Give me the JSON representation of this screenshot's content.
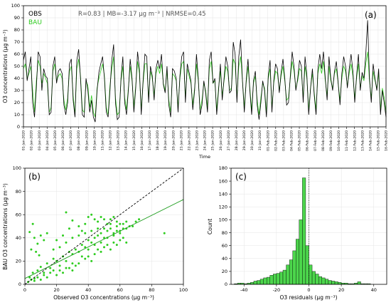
{
  "chart_data": [
    {
      "type": "line",
      "panel": "(a)",
      "ylabel": "O3 concentrations (μg m⁻³)",
      "xlabel": "Time",
      "ylim": [
        0,
        100
      ],
      "yticks": [
        0,
        10,
        20,
        30,
        40,
        50,
        60,
        70,
        80,
        90,
        100
      ],
      "grid": true,
      "legend": {
        "placement": "top-left",
        "entries": [
          "OBS",
          "BAU"
        ]
      },
      "stats": "R=0.83 | MB=-3.17 μg m⁻³ | NRMSE=0.45",
      "x_tick_labels": [
        "01-Jan-2020",
        "02-Jan-2020",
        "03-Jan-2020",
        "04-Jan-2020",
        "05-Jan-2020",
        "06-Jan-2020",
        "07-Jan-2020",
        "08-Jan-2020",
        "09-Jan-2020",
        "10-Jan-2020",
        "11-Jan-2020",
        "12-Jan-2020",
        "13-Jan-2020",
        "14-Jan-2020",
        "15-Jan-2020",
        "16-Jan-2020",
        "17-Jan-2020",
        "18-Jan-2020",
        "19-Jan-2020",
        "20-Jan-2020",
        "21-Jan-2020",
        "22-Jan-2020",
        "23-Jan-2020",
        "24-Jan-2020",
        "25-Jan-2020",
        "26-Jan-2020",
        "27-Jan-2020",
        "28-Jan-2020",
        "29-Jan-2020",
        "30-Jan-2020",
        "31-Jan-2020",
        "01-Feb-2020",
        "02-Feb-2020",
        "03-Feb-2020",
        "04-Feb-2020",
        "05-Feb-2020",
        "06-Feb-2020",
        "07-Feb-2020",
        "08-Feb-2020",
        "09-Feb-2020",
        "10-Feb-2020",
        "11-Feb-2020",
        "12-Feb-2020",
        "13-Feb-2020",
        "14-Feb-2020",
        "15-Feb-2020",
        "16-Feb-2020"
      ],
      "series": [
        {
          "name": "OBS",
          "color": "#000000",
          "values": [
            55,
            62,
            38,
            48,
            58,
            20,
            8,
            32,
            62,
            58,
            30,
            48,
            42,
            40,
            10,
            12,
            50,
            58,
            36,
            46,
            48,
            44,
            18,
            10,
            20,
            52,
            56,
            22,
            8,
            55,
            64,
            40,
            10,
            8,
            40,
            30,
            12,
            22,
            8,
            4,
            30,
            45,
            52,
            58,
            40,
            12,
            8,
            30,
            55,
            68,
            20,
            6,
            8,
            40,
            58,
            20,
            10,
            30,
            56,
            40,
            12,
            32,
            62,
            48,
            10,
            38,
            60,
            58,
            20,
            50,
            42,
            22,
            48,
            55,
            48,
            60,
            35,
            28,
            50,
            18,
            8,
            48,
            46,
            40,
            12,
            42,
            58,
            62,
            20,
            52,
            45,
            38,
            14,
            30,
            60,
            40,
            10,
            18,
            38,
            28,
            12,
            55,
            62,
            36,
            40,
            10,
            30,
            52,
            22,
            40,
            58,
            50,
            28,
            30,
            70,
            60,
            20,
            58,
            72,
            38,
            12,
            38,
            56,
            30,
            10,
            38,
            46,
            18,
            6,
            20,
            38,
            30,
            8,
            42,
            55,
            12,
            38,
            52,
            48,
            28,
            45,
            56,
            40,
            18,
            20,
            42,
            62,
            50,
            30,
            40,
            55,
            50,
            20,
            58,
            42,
            10,
            32,
            48,
            26,
            10,
            48,
            60,
            48,
            62,
            40,
            22,
            58,
            40,
            30,
            46,
            54,
            36,
            18,
            44,
            58,
            50,
            32,
            48,
            60,
            46,
            20,
            42,
            60,
            30,
            45,
            40,
            60,
            88,
            40,
            20,
            52,
            40,
            30,
            48,
            10,
            30,
            20,
            8
          ]
        },
        {
          "name": "BAU",
          "color": "#2ecc1f",
          "values": [
            48,
            52,
            40,
            44,
            50,
            30,
            12,
            38,
            55,
            50,
            36,
            44,
            40,
            36,
            12,
            16,
            46,
            52,
            38,
            42,
            44,
            40,
            22,
            14,
            24,
            46,
            50,
            26,
            10,
            48,
            56,
            42,
            14,
            12,
            38,
            34,
            16,
            26,
            12,
            8,
            32,
            40,
            46,
            52,
            42,
            16,
            10,
            34,
            48,
            58,
            24,
            10,
            12,
            38,
            50,
            24,
            14,
            32,
            50,
            38,
            16,
            34,
            54,
            44,
            14,
            36,
            52,
            52,
            24,
            46,
            40,
            26,
            44,
            50,
            44,
            52,
            36,
            30,
            46,
            22,
            12,
            44,
            42,
            38,
            16,
            40,
            52,
            54,
            24,
            48,
            42,
            36,
            18,
            32,
            52,
            38,
            14,
            22,
            36,
            30,
            16,
            48,
            54,
            36,
            38,
            14,
            32,
            46,
            26,
            38,
            50,
            46,
            30,
            32,
            56,
            52,
            24,
            50,
            58,
            38,
            16,
            36,
            50,
            32,
            14,
            36,
            42,
            22,
            10,
            24,
            36,
            32,
            12,
            40,
            48,
            16,
            36,
            46,
            44,
            30,
            42,
            50,
            38,
            22,
            24,
            40,
            54,
            46,
            32,
            38,
            48,
            46,
            24,
            50,
            40,
            14,
            32,
            44,
            28,
            14,
            44,
            52,
            44,
            54,
            38,
            26,
            50,
            38,
            32,
            44,
            48,
            36,
            22,
            40,
            50,
            46,
            34,
            44,
            52,
            42,
            24,
            40,
            52,
            32,
            42,
            38,
            52,
            62,
            38,
            24,
            46,
            38,
            32,
            44,
            14,
            32,
            24,
            12
          ]
        }
      ]
    },
    {
      "type": "scatter",
      "panel": "(b)",
      "xlabel": "Observed O3 concentrations (μg m⁻³)",
      "ylabel": "BAU O3 concentrations (μg m⁻³)",
      "xlim": [
        0,
        100
      ],
      "ylim": [
        0,
        100
      ],
      "xticks": [
        0,
        20,
        40,
        60,
        80,
        100
      ],
      "yticks": [
        0,
        20,
        40,
        60,
        80,
        100
      ],
      "grid": true,
      "reference_line": {
        "style": "1:1 dashed",
        "slope": 1,
        "intercept": 0
      },
      "fit_line": {
        "slope": 0.68,
        "intercept": 5,
        "color": "#1e9e1e"
      },
      "point_color": "#2ecc1f",
      "points": [
        [
          3,
          6
        ],
        [
          5,
          10
        ],
        [
          6,
          5
        ],
        [
          8,
          12
        ],
        [
          10,
          15
        ],
        [
          12,
          8
        ],
        [
          14,
          18
        ],
        [
          16,
          14
        ],
        [
          18,
          22
        ],
        [
          20,
          20
        ],
        [
          22,
          16
        ],
        [
          24,
          24
        ],
        [
          26,
          20
        ],
        [
          28,
          28
        ],
        [
          30,
          26
        ],
        [
          32,
          30
        ],
        [
          34,
          28
        ],
        [
          36,
          34
        ],
        [
          38,
          32
        ],
        [
          40,
          38
        ],
        [
          42,
          36
        ],
        [
          44,
          40
        ],
        [
          46,
          42
        ],
        [
          48,
          44
        ],
        [
          50,
          40
        ],
        [
          52,
          46
        ],
        [
          54,
          48
        ],
        [
          56,
          44
        ],
        [
          58,
          50
        ],
        [
          60,
          52
        ],
        [
          62,
          48
        ],
        [
          64,
          54
        ],
        [
          68,
          50
        ],
        [
          72,
          56
        ],
        [
          88,
          44
        ],
        [
          4,
          30
        ],
        [
          6,
          40
        ],
        [
          8,
          35
        ],
        [
          10,
          42
        ],
        [
          12,
          38
        ],
        [
          14,
          44
        ],
        [
          3,
          45
        ],
        [
          5,
          52
        ],
        [
          7,
          28
        ],
        [
          9,
          25
        ],
        [
          20,
          38
        ],
        [
          24,
          42
        ],
        [
          26,
          62
        ],
        [
          28,
          48
        ],
        [
          30,
          55
        ],
        [
          34,
          50
        ],
        [
          36,
          46
        ],
        [
          38,
          52
        ],
        [
          40,
          58
        ],
        [
          42,
          60
        ],
        [
          44,
          56
        ],
        [
          46,
          54
        ],
        [
          48,
          58
        ],
        [
          50,
          56
        ],
        [
          52,
          52
        ],
        [
          54,
          56
        ],
        [
          56,
          58
        ],
        [
          58,
          46
        ],
        [
          60,
          44
        ],
        [
          62,
          40
        ],
        [
          64,
          36
        ],
        [
          30,
          12
        ],
        [
          34,
          18
        ],
        [
          38,
          22
        ],
        [
          40,
          24
        ],
        [
          42,
          20
        ],
        [
          44,
          26
        ],
        [
          46,
          30
        ],
        [
          48,
          28
        ],
        [
          50,
          32
        ],
        [
          52,
          34
        ],
        [
          54,
          30
        ],
        [
          56,
          36
        ],
        [
          58,
          34
        ],
        [
          60,
          38
        ],
        [
          20,
          8
        ],
        [
          24,
          10
        ],
        [
          28,
          14
        ],
        [
          32,
          16
        ],
        [
          2,
          2
        ],
        [
          4,
          4
        ],
        [
          6,
          3
        ],
        [
          8,
          6
        ],
        [
          10,
          4
        ],
        [
          12,
          10
        ],
        [
          14,
          6
        ],
        [
          16,
          10
        ],
        [
          18,
          12
        ],
        [
          22,
          12
        ],
        [
          26,
          14
        ],
        [
          30,
          18
        ],
        [
          36,
          24
        ],
        [
          40,
          30
        ],
        [
          44,
          34
        ],
        [
          48,
          36
        ],
        [
          52,
          40
        ],
        [
          56,
          42
        ],
        [
          60,
          46
        ],
        [
          64,
          48
        ],
        [
          18,
          30
        ],
        [
          22,
          32
        ],
        [
          26,
          36
        ],
        [
          30,
          40
        ],
        [
          34,
          42
        ],
        [
          38,
          44
        ],
        [
          42,
          46
        ],
        [
          46,
          48
        ],
        [
          50,
          48
        ],
        [
          54,
          52
        ],
        [
          58,
          54
        ],
        [
          62,
          52
        ],
        [
          66,
          50
        ],
        [
          70,
          54
        ]
      ]
    },
    {
      "type": "bar",
      "subtype": "histogram",
      "panel": "(c)",
      "xlabel": "O3 residuals (μg m⁻³)",
      "ylabel": "Count",
      "xlim": [
        -48,
        48
      ],
      "ylim": [
        0,
        180
      ],
      "xticks": [
        -40,
        -20,
        0,
        20,
        40
      ],
      "yticks": [
        0,
        20,
        40,
        60,
        80,
        100,
        120,
        140,
        160,
        180
      ],
      "grid": true,
      "zero_line": "dotted",
      "bin_width": 2,
      "bin_start": -46,
      "color": "#4cd64c",
      "values": [
        1,
        2,
        2,
        1,
        2,
        3,
        5,
        6,
        8,
        10,
        11,
        14,
        16,
        17,
        19,
        22,
        30,
        38,
        52,
        70,
        100,
        165,
        60,
        30,
        20,
        16,
        12,
        10,
        8,
        6,
        5,
        4,
        3,
        2,
        2,
        1,
        1,
        2,
        4,
        1,
        1,
        1
      ]
    }
  ],
  "labels": {
    "panel_a": "(a)",
    "panel_b": "(b)",
    "panel_c": "(c)",
    "legend_obs": "OBS",
    "legend_bau": "BAU",
    "stats": "R=0.83 | MB=-3.17 μg m⁻³ | NRMSE=0.45",
    "time": "Time",
    "ylabel_a": "O3 concentrations (μg m⁻³)",
    "xlabel_b": "Observed O3 concentrations (μg m⁻³)",
    "ylabel_b": "BAU O3 concentrations (μg m⁻³)",
    "xlabel_c": "O3 residuals (μg m⁻³)",
    "ylabel_c": "Count"
  }
}
